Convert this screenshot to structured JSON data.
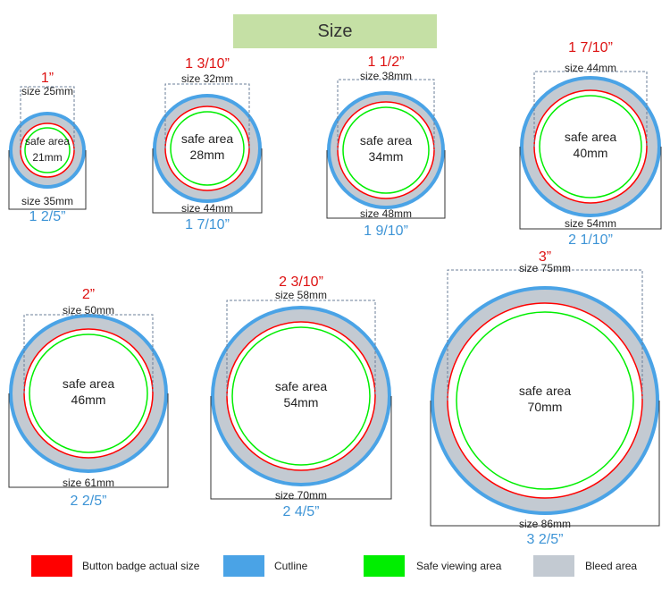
{
  "title": "Size",
  "colors": {
    "actual": "#ff0000",
    "cutline": "#4aa3e6",
    "safe": "#00ee00",
    "bleed": "#c3cad2",
    "inch_top": "#dd1111",
    "inch_bottom": "#3d94d6",
    "title_bg": "#c5e0a5"
  },
  "badges": [
    {
      "id": "b1",
      "inch_top": "1”",
      "actual_label": "size 25mm",
      "safe_label": "safe area",
      "safe_mm": "21mm",
      "bleed_label": "size 35mm",
      "inch_bottom": "1 2/5”"
    },
    {
      "id": "b2",
      "inch_top": "1 3/10”",
      "actual_label": "size 32mm",
      "safe_label": "safe area",
      "safe_mm": "28mm",
      "bleed_label": "size 44mm",
      "inch_bottom": "1 7/10”"
    },
    {
      "id": "b3",
      "inch_top": "1 1/2”",
      "actual_label": "size 38mm",
      "safe_label": "safe area",
      "safe_mm": "34mm",
      "bleed_label": "size 48mm",
      "inch_bottom": "1 9/10”"
    },
    {
      "id": "b4",
      "inch_top": "1 7/10”",
      "actual_label": "size 44mm",
      "safe_label": "safe area",
      "safe_mm": "40mm",
      "bleed_label": "size 54mm",
      "inch_bottom": "2 1/10”"
    },
    {
      "id": "b5",
      "inch_top": "2”",
      "actual_label": "size 50mm",
      "safe_label": "safe area",
      "safe_mm": "46mm",
      "bleed_label": "size 61mm",
      "inch_bottom": "2 2/5”"
    },
    {
      "id": "b6",
      "inch_top": "2 3/10”",
      "actual_label": "size 58mm",
      "safe_label": "safe area",
      "safe_mm": "54mm",
      "bleed_label": "size 70mm",
      "inch_bottom": "2 4/5”"
    },
    {
      "id": "b7",
      "inch_top": "3”",
      "actual_label": "size 75mm",
      "safe_label": "safe area",
      "safe_mm": "70mm",
      "bleed_label": "size 86mm",
      "inch_bottom": "3 2/5”"
    }
  ],
  "legend": [
    {
      "label": "Button badge actual size",
      "color_key": "actual"
    },
    {
      "label": "Cutline",
      "color_key": "cutline"
    },
    {
      "label": "Safe viewing area",
      "color_key": "safe"
    },
    {
      "label": "Bleed area",
      "color_key": "bleed"
    }
  ]
}
